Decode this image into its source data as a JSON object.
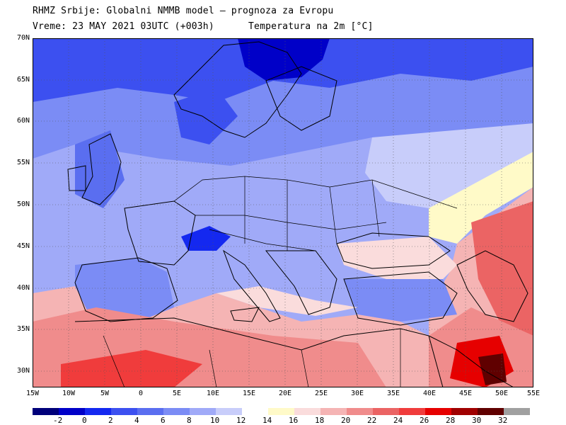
{
  "header": {
    "line1": "RHMZ Srbije: Globalni NMMB model — prognoza za Evropu",
    "line2": "Vreme: 23 MAY 2021 03UTC (+003h)      Temperatura na 2m [°C]"
  },
  "map": {
    "lat_labels": [
      "70N",
      "65N",
      "60N",
      "55N",
      "50N",
      "45N",
      "40N",
      "35N",
      "30N"
    ],
    "lon_labels": [
      "15W",
      "10W",
      "5W",
      "0",
      "5E",
      "10E",
      "15E",
      "20E",
      "25E",
      "30E",
      "35E",
      "40E",
      "45E",
      "50E",
      "55E"
    ]
  },
  "colorbar": {
    "levels": [
      "-2",
      "0",
      "2",
      "4",
      "6",
      "8",
      "10",
      "12",
      "14",
      "16",
      "18",
      "20",
      "22",
      "24",
      "26",
      "28",
      "30",
      "32"
    ],
    "colors": [
      "#00007a",
      "#0000c8",
      "#1428f0",
      "#3c50f0",
      "#5a6ef0",
      "#7b8cf5",
      "#a0aaf8",
      "#c8cdfa",
      "#ffffff",
      "#fffac8",
      "#fadcdc",
      "#f5b4b4",
      "#f08c8c",
      "#eb6464",
      "#f03c3c",
      "#e60000",
      "#a00000",
      "#600000",
      "#a0a0a0"
    ]
  }
}
